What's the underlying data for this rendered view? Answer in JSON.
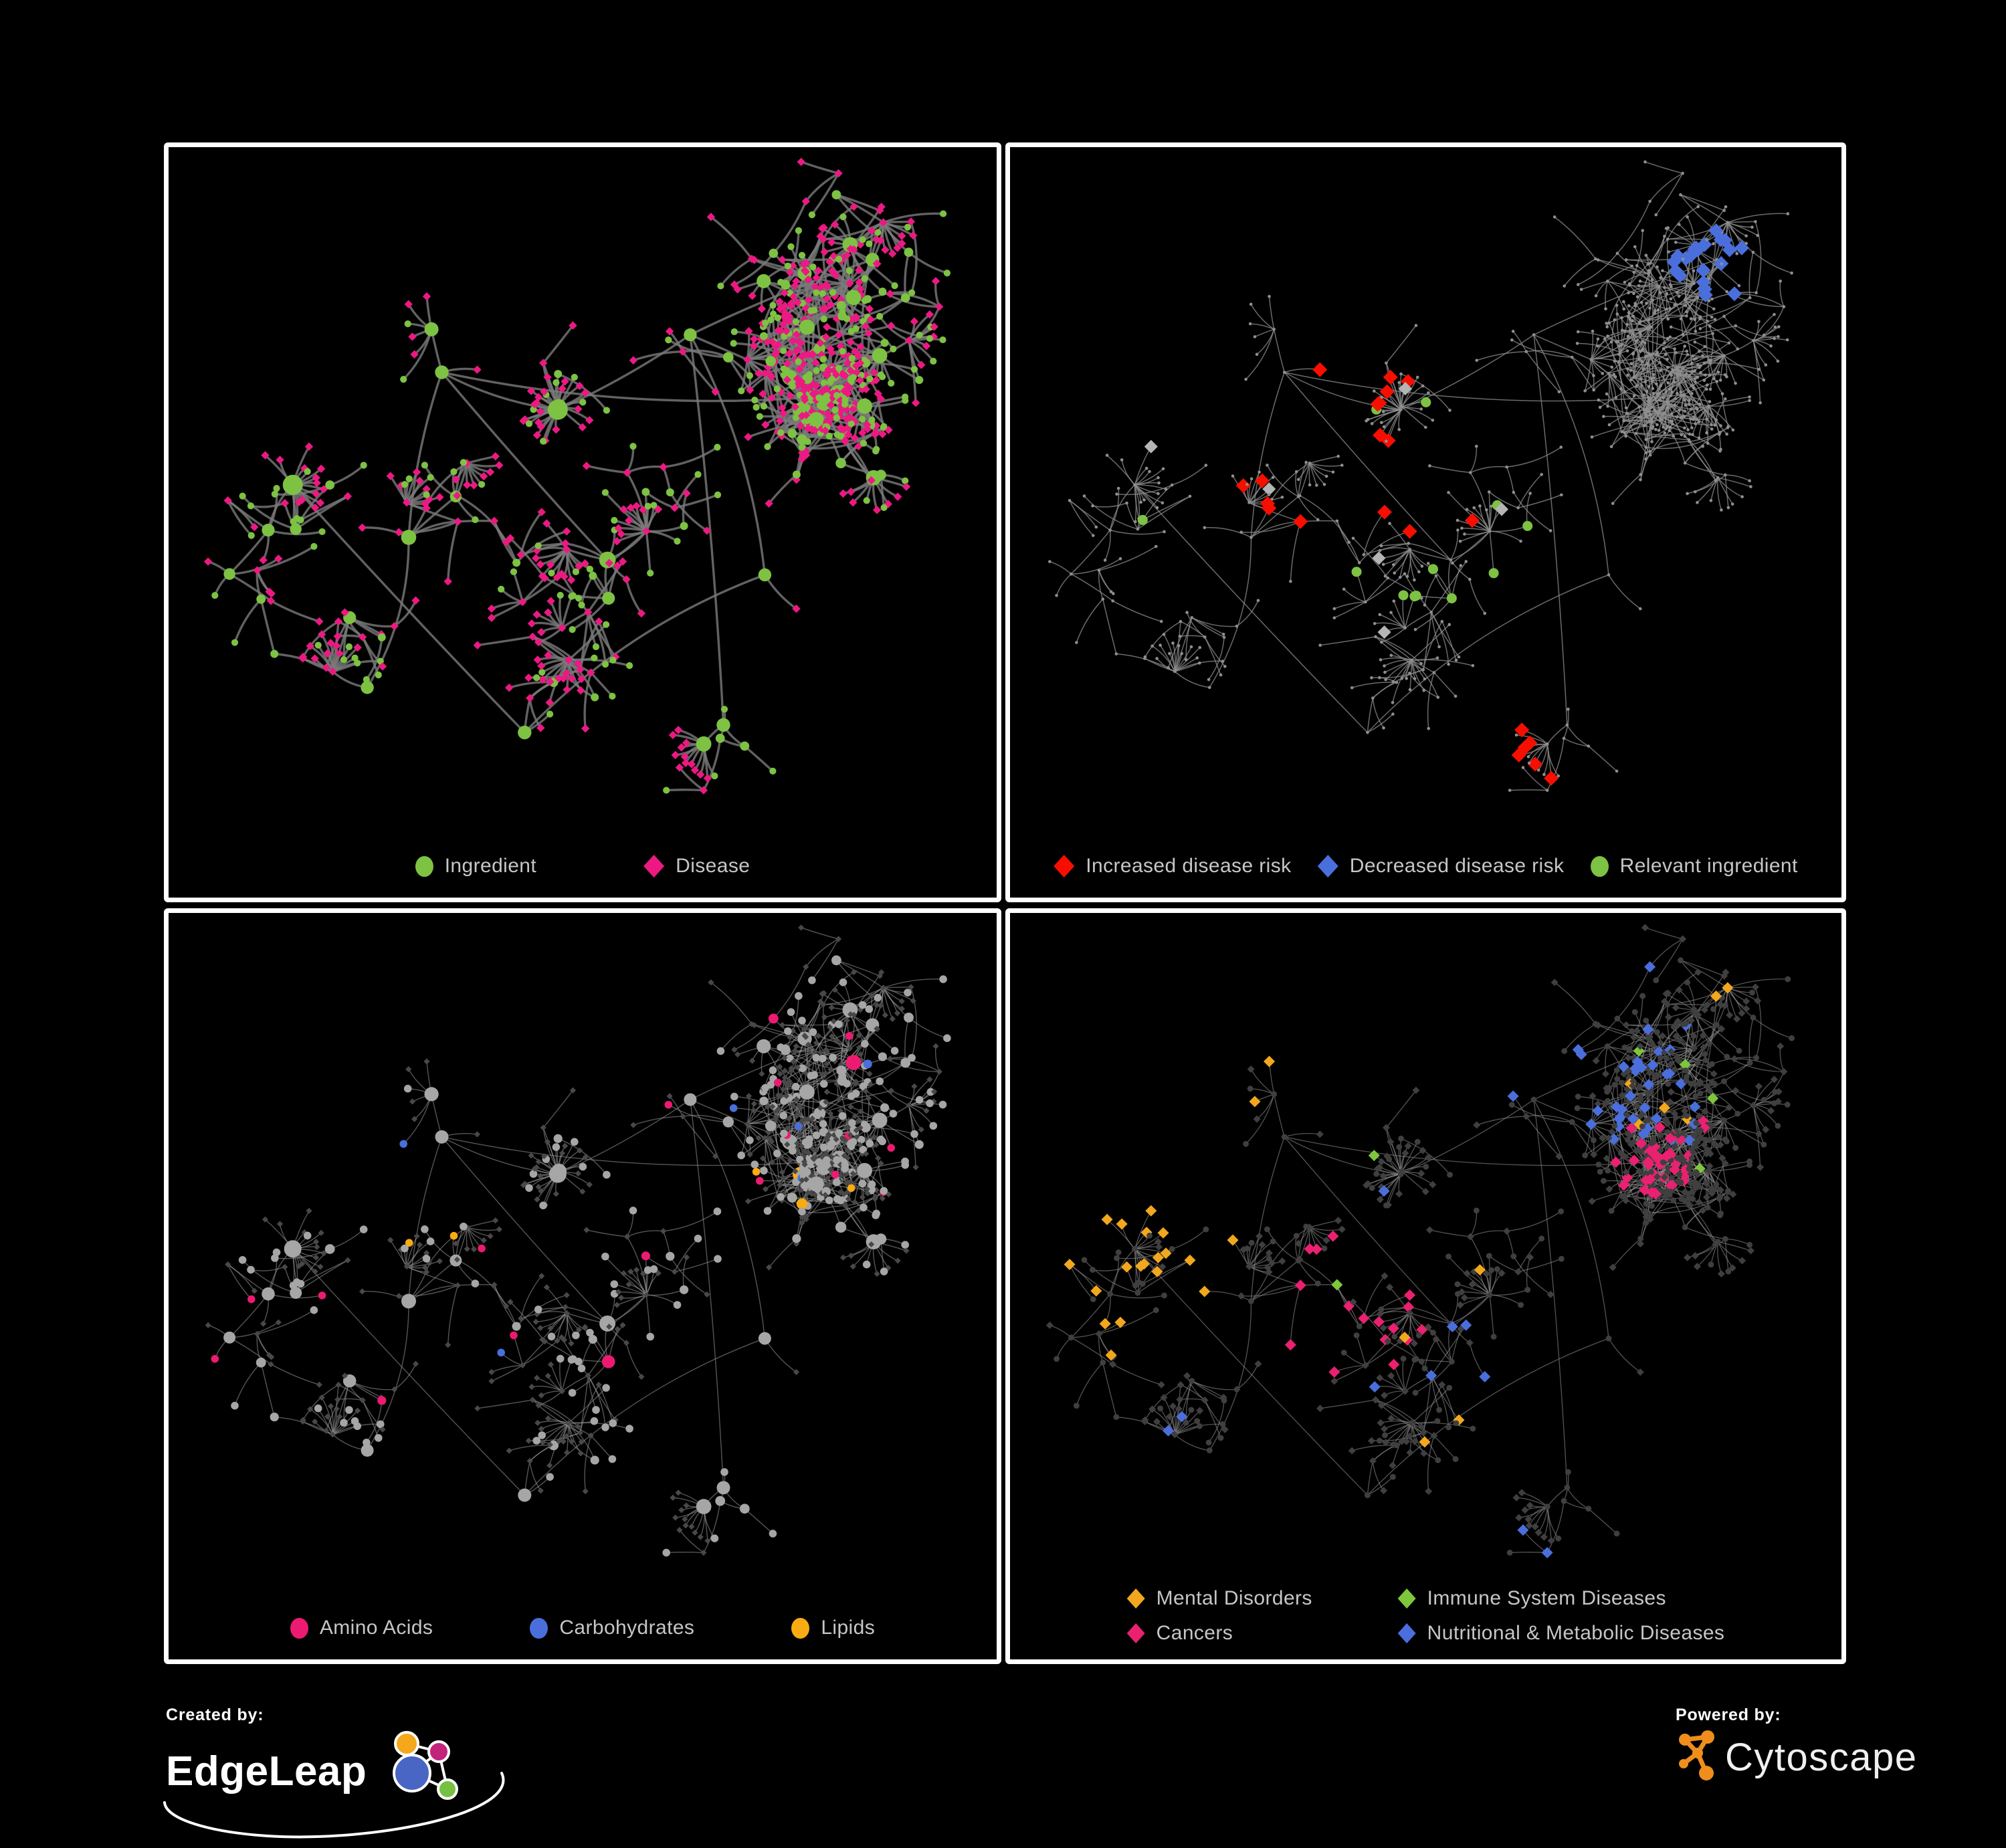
{
  "figure": {
    "background": "#000000",
    "panel_border": "#ffffff"
  },
  "panels": [
    {
      "id": "ingredient-disease",
      "legend": [
        {
          "label": "Ingredient",
          "shape": "circle",
          "color": "#7dc242"
        },
        {
          "label": "Disease",
          "shape": "diamond",
          "color": "#ec1983"
        }
      ]
    },
    {
      "id": "disease-risk",
      "legend": [
        {
          "label": "Increased disease risk",
          "shape": "diamond",
          "color": "#f60f00"
        },
        {
          "label": "Decreased disease risk",
          "shape": "diamond",
          "color": "#4a6fdd"
        },
        {
          "label": "Relevant ingredient",
          "shape": "circle",
          "color": "#7dc242"
        }
      ]
    },
    {
      "id": "nutrients",
      "legend": [
        {
          "label": "Amino Acids",
          "shape": "circle",
          "color": "#ed1a72"
        },
        {
          "label": "Carbohydrates",
          "shape": "circle",
          "color": "#4a6fdd"
        },
        {
          "label": "Lipids",
          "shape": "circle",
          "color": "#f9ab13"
        }
      ]
    },
    {
      "id": "disease-classes",
      "legend": [
        {
          "label": "Mental Disorders",
          "shape": "diamond",
          "color": "#f2a71e"
        },
        {
          "label": "Immune System Diseases",
          "shape": "diamond",
          "color": "#7ec73c"
        },
        {
          "label": "Cancers",
          "shape": "diamond",
          "color": "#ea2070"
        },
        {
          "label": "Nutritional & Metabolic Diseases",
          "shape": "diamond",
          "color": "#4a6fdd"
        }
      ]
    }
  ],
  "footer": {
    "created_by": {
      "label": "Created by:",
      "brand": "EdgeLeap"
    },
    "powered_by": {
      "label": "Powered by:",
      "brand": "Cytoscape",
      "accent": "#ef8e1c"
    }
  },
  "network_style": {
    "p1": {
      "edge": "#7a7a7a",
      "edge_w": 3.4,
      "edge_o": 0.8,
      "circle": "#7dc242",
      "diamond": "#ec1983"
    },
    "p2": {
      "edge": "#8d8d8d",
      "edge_w": 1.5,
      "edge_o": 0.75,
      "dot": "#8f8f8f",
      "increased": "#f60f00",
      "decreased": "#4a6fdd",
      "neutral": "#b5b5b5",
      "ingredient": "#7dc242"
    },
    "p3": {
      "edge": "#9a9a9a",
      "edge_w": 1.4,
      "edge_o": 0.55,
      "other_circle": "#a6a6a6",
      "other": "#484848",
      "amino": "#ed1a72",
      "carbohydrates": "#4a6fdd",
      "lipids": "#f9ab13"
    },
    "p4": {
      "edge": "#8a8a8a",
      "edge_w": 1.3,
      "edge_o": 0.6,
      "other": "#3f3f3f",
      "mental": "#f2a71e",
      "immune": "#7ec73c",
      "cancers": "#ea2070",
      "nutritional": "#4a6fdd"
    }
  }
}
